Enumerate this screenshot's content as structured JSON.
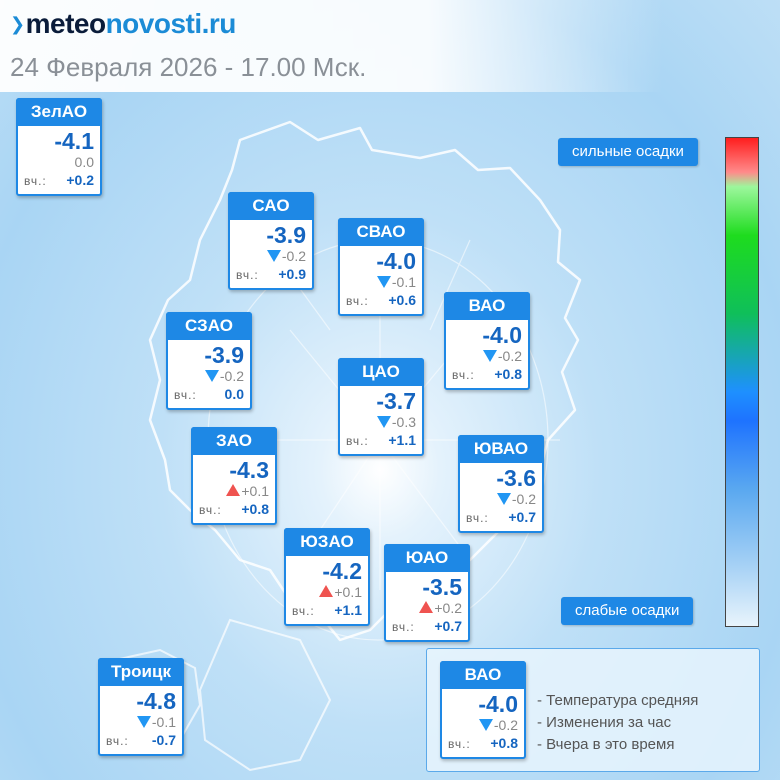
{
  "header": {
    "logo_dark": "meteo",
    "logo_blue": "novosti.ru",
    "date": "24 Февраля 2026 - 17.00 Мск."
  },
  "yesterday_label": "вч.:",
  "districts": [
    {
      "id": "zelao",
      "name": "ЗелАО",
      "temp": "-4.1",
      "change": "0.0",
      "trend": "none",
      "yesterday": "+0.2"
    },
    {
      "id": "sao",
      "name": "САО",
      "temp": "-3.9",
      "change": "-0.2",
      "trend": "down",
      "yesterday": "+0.9"
    },
    {
      "id": "svao",
      "name": "СВАО",
      "temp": "-4.0",
      "change": "-0.1",
      "trend": "down",
      "yesterday": "+0.6"
    },
    {
      "id": "vao",
      "name": "ВАО",
      "temp": "-4.0",
      "change": "-0.2",
      "trend": "down",
      "yesterday": "+0.8"
    },
    {
      "id": "szao",
      "name": "СЗАО",
      "temp": "-3.9",
      "change": "-0.2",
      "trend": "down",
      "yesterday": "0.0"
    },
    {
      "id": "cao",
      "name": "ЦАО",
      "temp": "-3.7",
      "change": "-0.3",
      "trend": "down",
      "yesterday": "+1.1"
    },
    {
      "id": "zao",
      "name": "ЗАО",
      "temp": "-4.3",
      "change": "+0.1",
      "trend": "up",
      "yesterday": "+0.8"
    },
    {
      "id": "yuvao",
      "name": "ЮВАО",
      "temp": "-3.6",
      "change": "-0.2",
      "trend": "down",
      "yesterday": "+0.7"
    },
    {
      "id": "yuzao",
      "name": "ЮЗАО",
      "temp": "-4.2",
      "change": "+0.1",
      "trend": "up",
      "yesterday": "+1.1"
    },
    {
      "id": "yuao",
      "name": "ЮАО",
      "temp": "-3.5",
      "change": "+0.2",
      "trend": "up",
      "yesterday": "+0.7"
    },
    {
      "id": "troick",
      "name": "Троицк",
      "temp": "-4.8",
      "change": "-0.1",
      "trend": "down",
      "yesterday": "-0.7"
    }
  ],
  "scale": {
    "top_label": "сильные осадки",
    "bottom_label": "слабые осадки"
  },
  "legend": {
    "sample": {
      "name": "ВАО",
      "temp": "-4.0",
      "change": "-0.2",
      "trend": "down",
      "yesterday": "+0.8"
    },
    "line_temp": "- Температура средняя",
    "line_change": "- Изменения за час",
    "line_yesterday": "- Вчера в это время"
  },
  "colors": {
    "accent": "#1e88e5",
    "temp_text": "#1565c0",
    "trend_down": "#2196f3",
    "trend_up": "#ef5350"
  }
}
